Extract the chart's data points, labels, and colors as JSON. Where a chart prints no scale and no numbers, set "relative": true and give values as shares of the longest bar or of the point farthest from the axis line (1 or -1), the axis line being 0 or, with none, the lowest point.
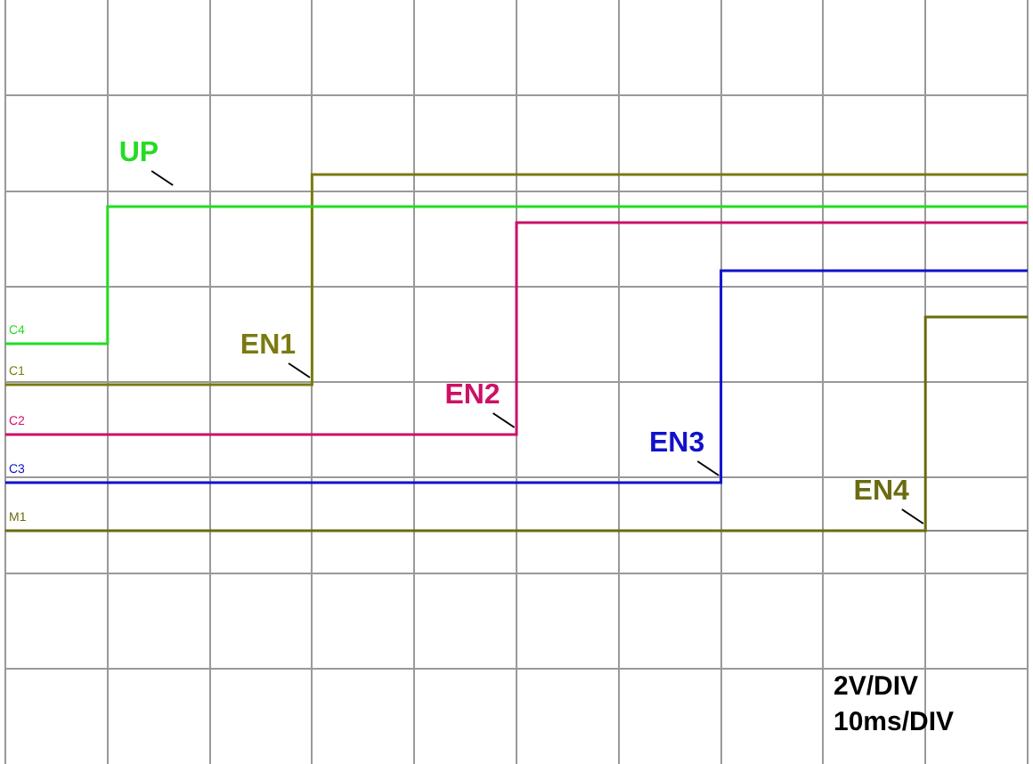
{
  "chart_data": {
    "type": "step",
    "relative": true,
    "grid": true,
    "categories": [
      null,
      null,
      null,
      null,
      null,
      null,
      null,
      null,
      null,
      null,
      null,
      null,
      null,
      null,
      null,
      null,
      null,
      null,
      null,
      null,
      null,
      null,
      null,
      null,
      null,
      null,
      null,
      null,
      null,
      null,
      null,
      null,
      null,
      null,
      null,
      null,
      null,
      null,
      null,
      null,
      null,
      null,
      null,
      null,
      null,
      null,
      null,
      null,
      null,
      null,
      null
    ],
    "series": [
      {
        "name": "UP",
        "color": "#22dd22",
        "values": [
          0.525,
          0.525,
          0.525,
          0.525,
          0.525,
          0.525,
          0.91,
          0.91,
          0.91,
          0.91,
          0.91,
          0.91,
          0.91,
          0.91,
          0.91,
          0.91,
          0.91,
          0.91,
          0.91,
          0.91,
          0.91,
          0.91,
          0.91,
          0.91,
          0.91,
          0.91,
          0.91,
          0.91,
          0.91,
          0.91,
          0.91,
          0.91,
          0.91,
          0.91,
          0.91,
          0.91,
          0.91,
          0.91,
          0.91,
          0.91,
          0.91,
          0.91,
          0.91,
          0.91,
          0.91,
          0.91,
          0.91,
          0.91,
          0.91,
          0.91,
          0.91
        ]
      },
      {
        "name": "EN1",
        "color": "#7a7a10",
        "values": [
          0.41,
          0.41,
          0.41,
          0.41,
          0.41,
          0.41,
          0.41,
          0.41,
          0.41,
          0.41,
          0.41,
          0.41,
          0.41,
          0.41,
          0.41,
          0.41,
          1,
          1,
          1,
          1,
          1,
          1,
          1,
          1,
          1,
          1,
          1,
          1,
          1,
          1,
          1,
          1,
          1,
          1,
          1,
          1,
          1,
          1,
          1,
          1,
          1,
          1,
          1,
          1,
          1,
          1,
          1,
          1,
          1,
          1,
          1
        ]
      },
      {
        "name": "EN2",
        "color": "#cc1166",
        "values": [
          0.27,
          0.27,
          0.27,
          0.27,
          0.27,
          0.27,
          0.27,
          0.27,
          0.27,
          0.27,
          0.27,
          0.27,
          0.27,
          0.27,
          0.27,
          0.27,
          0.27,
          0.27,
          0.27,
          0.27,
          0.27,
          0.27,
          0.27,
          0.27,
          0.27,
          0.27,
          0.865,
          0.865,
          0.865,
          0.865,
          0.865,
          0.865,
          0.865,
          0.865,
          0.865,
          0.865,
          0.865,
          0.865,
          0.865,
          0.865,
          0.865,
          0.865,
          0.865,
          0.865,
          0.865,
          0.865,
          0.865,
          0.865,
          0.865,
          0.865,
          0.865
        ]
      },
      {
        "name": "EN3",
        "color": "#1111cc",
        "values": [
          0.135,
          0.135,
          0.135,
          0.135,
          0.135,
          0.135,
          0.135,
          0.135,
          0.135,
          0.135,
          0.135,
          0.135,
          0.135,
          0.135,
          0.135,
          0.135,
          0.135,
          0.135,
          0.135,
          0.135,
          0.135,
          0.135,
          0.135,
          0.135,
          0.135,
          0.135,
          0.135,
          0.135,
          0.135,
          0.135,
          0.135,
          0.135,
          0.135,
          0.135,
          0.135,
          0.135,
          0.73,
          0.73,
          0.73,
          0.73,
          0.73,
          0.73,
          0.73,
          0.73,
          0.73,
          0.73,
          0.73,
          0.73,
          0.73,
          0.73,
          0.73
        ]
      },
      {
        "name": "EN4",
        "color": "#6b6b10",
        "values": [
          0,
          0,
          0,
          0,
          0,
          0,
          0,
          0,
          0,
          0,
          0,
          0,
          0,
          0,
          0,
          0,
          0,
          0,
          0,
          0,
          0,
          0,
          0,
          0,
          0,
          0,
          0,
          0,
          0,
          0,
          0,
          0,
          0,
          0,
          0,
          0,
          0,
          0,
          0,
          0,
          0,
          0,
          0,
          0,
          0,
          0,
          0.6,
          0.6,
          0.6,
          0.6,
          0.6
        ]
      }
    ],
    "annotations": [
      "C4",
      "C1",
      "C2",
      "C3",
      "M1",
      "2V/DIV",
      "10ms/DIV"
    ]
  }
}
